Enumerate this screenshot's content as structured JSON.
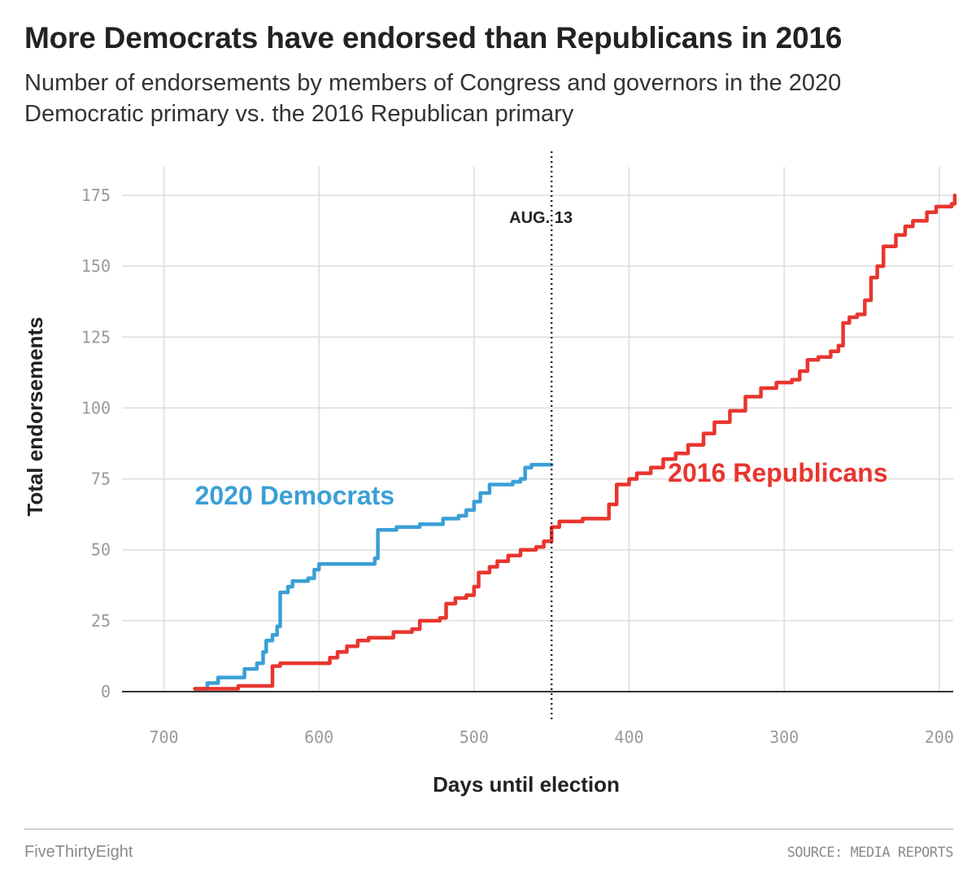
{
  "header": {
    "title": "More Democrats have endorsed than Republicans in 2016",
    "subtitle": "Number of endorsements by members of Congress and governors in the 2020 Democratic primary vs. the 2016 Republican primary"
  },
  "footer": {
    "brand": "FiveThirtyEight",
    "source": "SOURCE: MEDIA REPORTS"
  },
  "colors": {
    "democrats": "#3a9fd6",
    "republicans": "#e8352e",
    "grid": "#dddddd",
    "baseline": "#333333"
  },
  "chart_data": {
    "type": "line",
    "xlabel": "Days until election",
    "ylabel": "Total endorsements",
    "xlim": [
      727,
      191
    ],
    "ylim": [
      0,
      175
    ],
    "x_reversed": true,
    "x_ticks": [
      700,
      600,
      500,
      400,
      300,
      200
    ],
    "y_ticks": [
      0,
      25,
      50,
      75,
      100,
      125,
      150,
      175
    ],
    "grid": true,
    "annotation": {
      "label": "AUG. 13",
      "x": 450
    },
    "series": [
      {
        "name": "2020 Democrats",
        "color": "#3a9fd6",
        "label_position": {
          "x": 680,
          "y": 66
        },
        "points": [
          [
            680,
            1
          ],
          [
            672,
            3
          ],
          [
            665,
            5
          ],
          [
            650,
            5
          ],
          [
            648,
            8
          ],
          [
            640,
            10
          ],
          [
            636,
            14
          ],
          [
            634,
            18
          ],
          [
            630,
            20
          ],
          [
            627,
            23
          ],
          [
            625,
            35
          ],
          [
            620,
            37
          ],
          [
            617,
            39
          ],
          [
            607,
            40
          ],
          [
            603,
            43
          ],
          [
            600,
            45
          ],
          [
            575,
            45
          ],
          [
            564,
            47
          ],
          [
            562,
            57
          ],
          [
            550,
            58
          ],
          [
            535,
            59
          ],
          [
            520,
            61
          ],
          [
            510,
            62
          ],
          [
            505,
            64
          ],
          [
            500,
            67
          ],
          [
            496,
            70
          ],
          [
            490,
            73
          ],
          [
            475,
            74
          ],
          [
            470,
            75
          ],
          [
            467,
            79
          ],
          [
            463,
            80
          ],
          [
            450,
            80
          ]
        ]
      },
      {
        "name": "2016 Republicans",
        "color": "#e8352e",
        "label_position": {
          "x": 375,
          "y": 74
        },
        "points": [
          [
            680,
            1
          ],
          [
            655,
            1
          ],
          [
            652,
            2
          ],
          [
            633,
            2
          ],
          [
            630,
            9
          ],
          [
            625,
            10
          ],
          [
            600,
            10
          ],
          [
            593,
            12
          ],
          [
            588,
            14
          ],
          [
            582,
            16
          ],
          [
            575,
            18
          ],
          [
            568,
            19
          ],
          [
            557,
            19
          ],
          [
            552,
            21
          ],
          [
            540,
            22
          ],
          [
            535,
            25
          ],
          [
            522,
            26
          ],
          [
            518,
            31
          ],
          [
            512,
            33
          ],
          [
            505,
            34
          ],
          [
            500,
            37
          ],
          [
            497,
            42
          ],
          [
            490,
            44
          ],
          [
            485,
            46
          ],
          [
            478,
            48
          ],
          [
            470,
            50
          ],
          [
            460,
            51
          ],
          [
            455,
            53
          ],
          [
            450,
            58
          ],
          [
            445,
            60
          ],
          [
            430,
            61
          ],
          [
            418,
            61
          ],
          [
            413,
            66
          ],
          [
            408,
            73
          ],
          [
            400,
            75
          ],
          [
            395,
            77
          ],
          [
            386,
            79
          ],
          [
            378,
            82
          ],
          [
            370,
            84
          ],
          [
            362,
            87
          ],
          [
            352,
            91
          ],
          [
            345,
            95
          ],
          [
            335,
            99
          ],
          [
            325,
            104
          ],
          [
            315,
            107
          ],
          [
            305,
            109
          ],
          [
            295,
            110
          ],
          [
            290,
            113
          ],
          [
            285,
            117
          ],
          [
            278,
            118
          ],
          [
            270,
            120
          ],
          [
            265,
            122
          ],
          [
            262,
            130
          ],
          [
            258,
            132
          ],
          [
            253,
            133
          ],
          [
            248,
            138
          ],
          [
            244,
            146
          ],
          [
            240,
            150
          ],
          [
            236,
            157
          ],
          [
            228,
            161
          ],
          [
            222,
            164
          ],
          [
            217,
            166
          ],
          [
            208,
            169
          ],
          [
            202,
            171
          ],
          [
            192,
            172
          ],
          [
            190,
            175
          ]
        ]
      }
    ]
  }
}
